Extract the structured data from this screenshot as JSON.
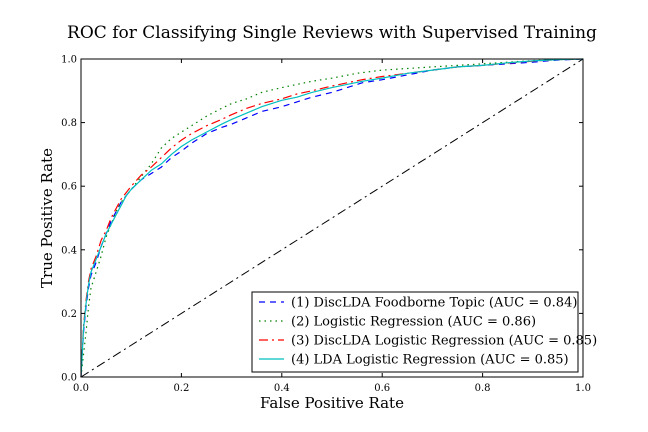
{
  "chart_data": {
    "type": "line",
    "title": "ROC for Classifying Single Reviews with Supervised Training",
    "xlabel": "False Positive Rate",
    "ylabel": "True Positive Rate",
    "xlim": [
      0.0,
      1.0
    ],
    "ylim": [
      0.0,
      1.0
    ],
    "xticks": [
      "0.0",
      "0.2",
      "0.4",
      "0.6",
      "0.8",
      "1.0"
    ],
    "yticks": [
      "0.0",
      "0.2",
      "0.4",
      "0.6",
      "0.8",
      "1.0"
    ],
    "grid": false,
    "legend_position": "bottom-right",
    "series": [
      {
        "name": "(1) DiscLDA Foodborne Topic (AUC = 0.84)",
        "color": "#0000ff",
        "dash": "dashed",
        "points": [
          [
            0.0,
            0.0
          ],
          [
            0.005,
            0.14
          ],
          [
            0.01,
            0.22
          ],
          [
            0.015,
            0.28
          ],
          [
            0.02,
            0.32
          ],
          [
            0.03,
            0.36
          ],
          [
            0.04,
            0.41
          ],
          [
            0.05,
            0.45
          ],
          [
            0.06,
            0.49
          ],
          [
            0.07,
            0.52
          ],
          [
            0.08,
            0.55
          ],
          [
            0.09,
            0.57
          ],
          [
            0.1,
            0.59
          ],
          [
            0.12,
            0.62
          ],
          [
            0.14,
            0.64
          ],
          [
            0.16,
            0.66
          ],
          [
            0.18,
            0.69
          ],
          [
            0.2,
            0.71
          ],
          [
            0.22,
            0.735
          ],
          [
            0.25,
            0.765
          ],
          [
            0.28,
            0.785
          ],
          [
            0.3,
            0.795
          ],
          [
            0.33,
            0.815
          ],
          [
            0.36,
            0.835
          ],
          [
            0.4,
            0.85
          ],
          [
            0.43,
            0.865
          ],
          [
            0.46,
            0.88
          ],
          [
            0.5,
            0.895
          ],
          [
            0.53,
            0.91
          ],
          [
            0.56,
            0.925
          ],
          [
            0.6,
            0.935
          ],
          [
            0.65,
            0.95
          ],
          [
            0.7,
            0.965
          ],
          [
            0.75,
            0.975
          ],
          [
            0.8,
            0.98
          ],
          [
            0.85,
            0.985
          ],
          [
            0.9,
            0.99
          ],
          [
            0.95,
            0.997
          ],
          [
            1.0,
            1.0
          ]
        ]
      },
      {
        "name": "(2) Logistic Regression (AUC = 0.86)",
        "color": "#008000",
        "dash": "dotted",
        "points": [
          [
            0.0,
            0.0
          ],
          [
            0.005,
            0.07
          ],
          [
            0.01,
            0.14
          ],
          [
            0.015,
            0.22
          ],
          [
            0.02,
            0.28
          ],
          [
            0.03,
            0.33
          ],
          [
            0.04,
            0.38
          ],
          [
            0.05,
            0.44
          ],
          [
            0.06,
            0.48
          ],
          [
            0.07,
            0.52
          ],
          [
            0.08,
            0.55
          ],
          [
            0.09,
            0.57
          ],
          [
            0.1,
            0.59
          ],
          [
            0.12,
            0.63
          ],
          [
            0.14,
            0.67
          ],
          [
            0.16,
            0.72
          ],
          [
            0.18,
            0.75
          ],
          [
            0.2,
            0.77
          ],
          [
            0.22,
            0.79
          ],
          [
            0.25,
            0.82
          ],
          [
            0.28,
            0.845
          ],
          [
            0.3,
            0.86
          ],
          [
            0.33,
            0.875
          ],
          [
            0.36,
            0.895
          ],
          [
            0.4,
            0.91
          ],
          [
            0.43,
            0.92
          ],
          [
            0.46,
            0.93
          ],
          [
            0.5,
            0.94
          ],
          [
            0.55,
            0.955
          ],
          [
            0.6,
            0.965
          ],
          [
            0.65,
            0.97
          ],
          [
            0.7,
            0.975
          ],
          [
            0.75,
            0.98
          ],
          [
            0.8,
            0.985
          ],
          [
            0.85,
            0.99
          ],
          [
            0.9,
            0.995
          ],
          [
            0.95,
            0.998
          ],
          [
            1.0,
            1.0
          ]
        ]
      },
      {
        "name": "(3) DiscLDA Logistic Regression (AUC = 0.85)",
        "color": "#ff0000",
        "dash": "dashdot",
        "points": [
          [
            0.0,
            0.0
          ],
          [
            0.005,
            0.16
          ],
          [
            0.01,
            0.24
          ],
          [
            0.015,
            0.3
          ],
          [
            0.02,
            0.34
          ],
          [
            0.03,
            0.38
          ],
          [
            0.04,
            0.43
          ],
          [
            0.05,
            0.46
          ],
          [
            0.06,
            0.5
          ],
          [
            0.07,
            0.53
          ],
          [
            0.08,
            0.56
          ],
          [
            0.09,
            0.58
          ],
          [
            0.1,
            0.6
          ],
          [
            0.12,
            0.635
          ],
          [
            0.14,
            0.66
          ],
          [
            0.16,
            0.69
          ],
          [
            0.18,
            0.72
          ],
          [
            0.2,
            0.745
          ],
          [
            0.22,
            0.765
          ],
          [
            0.25,
            0.79
          ],
          [
            0.28,
            0.81
          ],
          [
            0.3,
            0.825
          ],
          [
            0.33,
            0.845
          ],
          [
            0.36,
            0.86
          ],
          [
            0.4,
            0.875
          ],
          [
            0.43,
            0.89
          ],
          [
            0.46,
            0.9
          ],
          [
            0.5,
            0.915
          ],
          [
            0.53,
            0.925
          ],
          [
            0.56,
            0.935
          ],
          [
            0.6,
            0.945
          ],
          [
            0.65,
            0.955
          ],
          [
            0.7,
            0.965
          ],
          [
            0.75,
            0.975
          ],
          [
            0.8,
            0.98
          ],
          [
            0.85,
            0.987
          ],
          [
            0.9,
            0.993
          ],
          [
            0.95,
            0.998
          ],
          [
            1.0,
            1.0
          ]
        ]
      },
      {
        "name": "(4) LDA Logistic Regression (AUC = 0.85)",
        "color": "#00bfbf",
        "dash": "solid",
        "points": [
          [
            0.0,
            0.0
          ],
          [
            0.005,
            0.15
          ],
          [
            0.01,
            0.23
          ],
          [
            0.015,
            0.29
          ],
          [
            0.02,
            0.33
          ],
          [
            0.03,
            0.37
          ],
          [
            0.04,
            0.41
          ],
          [
            0.05,
            0.45
          ],
          [
            0.06,
            0.48
          ],
          [
            0.07,
            0.51
          ],
          [
            0.08,
            0.54
          ],
          [
            0.09,
            0.57
          ],
          [
            0.1,
            0.59
          ],
          [
            0.12,
            0.62
          ],
          [
            0.14,
            0.65
          ],
          [
            0.16,
            0.67
          ],
          [
            0.18,
            0.7
          ],
          [
            0.2,
            0.725
          ],
          [
            0.22,
            0.745
          ],
          [
            0.25,
            0.77
          ],
          [
            0.28,
            0.795
          ],
          [
            0.3,
            0.81
          ],
          [
            0.33,
            0.83
          ],
          [
            0.36,
            0.85
          ],
          [
            0.4,
            0.87
          ],
          [
            0.43,
            0.88
          ],
          [
            0.46,
            0.895
          ],
          [
            0.5,
            0.91
          ],
          [
            0.53,
            0.92
          ],
          [
            0.56,
            0.93
          ],
          [
            0.6,
            0.94
          ],
          [
            0.65,
            0.955
          ],
          [
            0.7,
            0.965
          ],
          [
            0.75,
            0.975
          ],
          [
            0.8,
            0.98
          ],
          [
            0.85,
            0.988
          ],
          [
            0.9,
            0.994
          ],
          [
            0.95,
            0.998
          ],
          [
            1.0,
            1.0
          ]
        ]
      }
    ],
    "reference_line": {
      "color": "#000000",
      "dash": "dashdot",
      "points": [
        [
          0.0,
          0.0
        ],
        [
          1.0,
          1.0
        ]
      ]
    }
  }
}
